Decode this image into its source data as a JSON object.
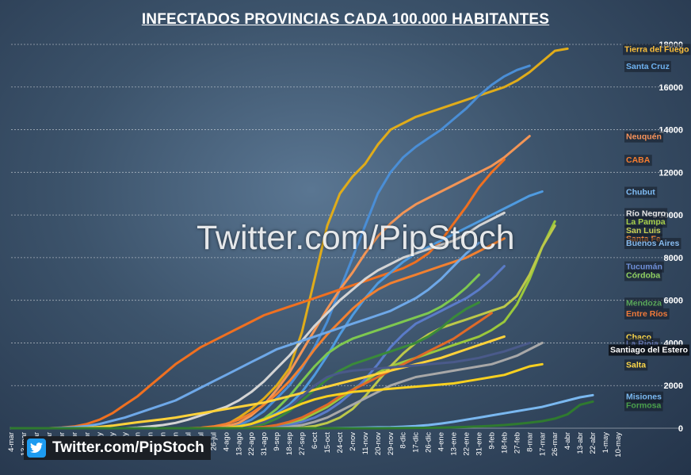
{
  "title": "INFECTADOS  PROVINCIAS CADA 100.000 HABITANTES",
  "watermark": "Twitter.com/PipStoch",
  "footer": {
    "text": "Twitter.com/PipStoch",
    "icon": "twitter-bird-icon"
  },
  "chart_data": {
    "type": "line",
    "xlabel": "",
    "ylabel": "",
    "ylim": [
      0,
      18000
    ],
    "y_ticks": [
      "0",
      "2000",
      "4000",
      "6000",
      "8000",
      "10000",
      "12000",
      "14000",
      "16000",
      "18000"
    ],
    "x_ticks": [
      "4-mar",
      "13-mar",
      "22-mar",
      "31-mar",
      "9-abr",
      "18-abr",
      "27-abr",
      "6-may",
      "15-may",
      "24-may",
      "2-jun",
      "11-jun",
      "20-jun",
      "29-jun",
      "8-jul",
      "17-jul",
      "26-jul",
      "4-ago",
      "13-ago",
      "22-ago",
      "31-ago",
      "9-sep",
      "18-sep",
      "27-sep",
      "6-oct",
      "15-oct",
      "24-oct",
      "2-nov",
      "11-nov",
      "20-nov",
      "29-nov",
      "8-dic",
      "17-dic",
      "26-dic",
      "4-ene",
      "13-ene",
      "22-ene",
      "31-ene",
      "9-feb",
      "18-feb",
      "27-feb",
      "8-mar",
      "17-mar",
      "26-mar",
      "4-abr",
      "13-abr",
      "22-abr",
      "1-may",
      "10-may"
    ],
    "grid": true,
    "series": [
      {
        "name": "Tierra del Fuego",
        "color": "#e0ac1a",
        "values": [
          0,
          0,
          0,
          0,
          0,
          0,
          0,
          0,
          0,
          0,
          0,
          0,
          0,
          0,
          0,
          0,
          30,
          150,
          500,
          900,
          1400,
          2000,
          2800,
          4500,
          7000,
          9500,
          11000,
          11800,
          12400,
          13300,
          14000,
          14300,
          14600,
          14800,
          15000,
          15200,
          15400,
          15600,
          15800,
          16000,
          16300,
          16700,
          17200,
          17700,
          17800,
          null,
          null,
          null,
          null
        ]
      },
      {
        "name": "Santa Cruz",
        "color": "#4a8ed6",
        "values": [
          0,
          0,
          0,
          0,
          0,
          0,
          0,
          0,
          0,
          0,
          0,
          0,
          0,
          0,
          0,
          0,
          0,
          30,
          150,
          400,
          800,
          1400,
          2000,
          2800,
          3800,
          5000,
          6500,
          8000,
          9500,
          11000,
          12000,
          12700,
          13200,
          13600,
          14000,
          14500,
          15000,
          15600,
          16100,
          16500,
          16800,
          17000,
          null,
          null,
          null,
          null,
          null,
          null,
          null
        ]
      },
      {
        "name": "Neuquén",
        "color": "#f39556",
        "values": [
          0,
          0,
          0,
          0,
          0,
          0,
          0,
          0,
          0,
          0,
          0,
          0,
          0,
          0,
          0,
          0,
          20,
          80,
          250,
          600,
          1100,
          1800,
          2600,
          3600,
          4600,
          5600,
          6500,
          7300,
          8200,
          9000,
          9600,
          10100,
          10500,
          10800,
          11100,
          11400,
          11700,
          12000,
          12300,
          12700,
          13200,
          13700,
          null,
          null,
          null,
          null,
          null,
          null,
          null
        ]
      },
      {
        "name": "CABA",
        "color": "#f07020",
        "values": [
          0,
          0,
          0,
          0,
          30,
          80,
          200,
          400,
          700,
          1100,
          1500,
          2000,
          2500,
          3000,
          3400,
          3800,
          4100,
          4400,
          4700,
          5000,
          5300,
          5500,
          5700,
          5900,
          6100,
          6300,
          6500,
          6700,
          6900,
          7100,
          7300,
          7500,
          7800,
          8200,
          8800,
          9600,
          10400,
          11300,
          12000,
          12600,
          null,
          null,
          null,
          null,
          null,
          null,
          null,
          null,
          null
        ]
      },
      {
        "name": "Chubut",
        "color": "#4f9be0",
        "values": [
          0,
          0,
          0,
          0,
          0,
          0,
          0,
          0,
          0,
          0,
          0,
          0,
          0,
          0,
          0,
          0,
          0,
          20,
          80,
          200,
          400,
          700,
          1100,
          1700,
          2500,
          3400,
          4400,
          5300,
          6100,
          6800,
          7300,
          7800,
          8200,
          8500,
          8800,
          9100,
          9400,
          9700,
          10000,
          10300,
          10600,
          10900,
          11100,
          null,
          null,
          null,
          null,
          null,
          null
        ]
      },
      {
        "name": "Río Negro",
        "color": "#d4d4d4",
        "values": [
          0,
          0,
          0,
          0,
          0,
          0,
          0,
          0,
          0,
          0,
          30,
          80,
          150,
          250,
          400,
          600,
          800,
          1000,
          1300,
          1700,
          2200,
          2800,
          3400,
          4100,
          4800,
          5400,
          6000,
          6500,
          7000,
          7400,
          7700,
          8000,
          8200,
          8400,
          8600,
          8800,
          9100,
          9500,
          9800,
          10100,
          null,
          null,
          null,
          null,
          null,
          null,
          null,
          null,
          null
        ]
      },
      {
        "name": "La Pampa",
        "color": "#9ac83c",
        "values": [
          0,
          0,
          0,
          0,
          0,
          0,
          0,
          0,
          0,
          0,
          0,
          0,
          0,
          0,
          0,
          0,
          0,
          0,
          0,
          0,
          20,
          80,
          200,
          400,
          700,
          1000,
          1400,
          1800,
          2200,
          2600,
          2900,
          3100,
          3300,
          3500,
          3700,
          3900,
          4100,
          4300,
          4600,
          5000,
          5800,
          7000,
          8500,
          9700,
          null,
          null,
          null,
          null,
          null
        ]
      },
      {
        "name": "San Luis",
        "color": "#bcc84a",
        "values": [
          0,
          0,
          0,
          0,
          0,
          0,
          0,
          0,
          0,
          0,
          0,
          0,
          0,
          0,
          0,
          0,
          0,
          0,
          0,
          0,
          0,
          0,
          0,
          30,
          100,
          250,
          500,
          900,
          1500,
          2200,
          2900,
          3500,
          4000,
          4400,
          4700,
          4900,
          5100,
          5300,
          5500,
          5700,
          6200,
          7200,
          8500,
          9500,
          null,
          null,
          null,
          null,
          null
        ]
      },
      {
        "name": "Santa Fe",
        "color": "#f28030",
        "values": [
          0,
          0,
          0,
          0,
          0,
          0,
          0,
          0,
          0,
          0,
          0,
          0,
          0,
          0,
          0,
          20,
          80,
          200,
          400,
          700,
          1100,
          1600,
          2200,
          2900,
          3700,
          4400,
          5000,
          5600,
          6100,
          6500,
          6800,
          7000,
          7200,
          7400,
          7600,
          7800,
          8000,
          8300,
          8600,
          8900,
          null,
          null,
          null,
          null,
          null,
          null,
          null,
          null,
          null
        ]
      },
      {
        "name": "Buenos Aires",
        "color": "#6ea8e8",
        "values": [
          0,
          0,
          0,
          0,
          20,
          50,
          100,
          200,
          350,
          500,
          700,
          900,
          1100,
          1300,
          1600,
          1900,
          2200,
          2500,
          2800,
          3100,
          3400,
          3700,
          3900,
          4100,
          4300,
          4500,
          4700,
          4900,
          5100,
          5300,
          5500,
          5800,
          6100,
          6500,
          7000,
          7600,
          8200,
          8700,
          null,
          null,
          null,
          null,
          null,
          null,
          null,
          null,
          null,
          null,
          null
        ]
      },
      {
        "name": "Tucumán",
        "color": "#5a7bc8",
        "values": [
          0,
          0,
          0,
          0,
          0,
          0,
          0,
          0,
          0,
          0,
          0,
          0,
          0,
          0,
          0,
          0,
          0,
          0,
          0,
          0,
          20,
          60,
          150,
          300,
          500,
          800,
          1200,
          1700,
          2300,
          3000,
          3800,
          4400,
          4900,
          5200,
          5500,
          5800,
          6100,
          6500,
          7000,
          7600,
          null,
          null,
          null,
          null,
          null,
          null,
          null,
          null,
          null
        ]
      },
      {
        "name": "Córdoba",
        "color": "#7ec850",
        "values": [
          0,
          0,
          0,
          0,
          0,
          0,
          0,
          0,
          0,
          0,
          0,
          0,
          0,
          0,
          0,
          0,
          0,
          20,
          80,
          200,
          450,
          900,
          1500,
          2200,
          2900,
          3500,
          3900,
          4200,
          4400,
          4600,
          4800,
          5000,
          5200,
          5400,
          5700,
          6100,
          6600,
          7200,
          null,
          null,
          null,
          null,
          null,
          null,
          null,
          null,
          null,
          null,
          null
        ]
      },
      {
        "name": "Mendoza",
        "color": "#3a8a3a",
        "values": [
          0,
          0,
          0,
          0,
          0,
          0,
          0,
          0,
          0,
          0,
          0,
          0,
          0,
          0,
          0,
          0,
          0,
          0,
          20,
          80,
          200,
          450,
          800,
          1300,
          1800,
          2300,
          2700,
          3000,
          3200,
          3400,
          3600,
          3800,
          4000,
          4300,
          4700,
          5200,
          5600,
          5900,
          null,
          null,
          null,
          null,
          null,
          null,
          null,
          null,
          null,
          null,
          null
        ]
      },
      {
        "name": "Entre Ríos",
        "color": "#e06a28",
        "values": [
          0,
          0,
          0,
          0,
          0,
          0,
          0,
          0,
          0,
          0,
          0,
          0,
          0,
          0,
          0,
          0,
          0,
          0,
          0,
          20,
          60,
          150,
          300,
          500,
          800,
          1100,
          1500,
          1800,
          2100,
          2400,
          2700,
          3000,
          3300,
          3600,
          3900,
          4200,
          4600,
          5000,
          5400,
          null,
          null,
          null,
          null,
          null,
          null,
          null,
          null,
          null,
          null
        ]
      },
      {
        "name": "Chaco",
        "color": "#ffd23a",
        "values": [
          0,
          0,
          0,
          0,
          0,
          0,
          20,
          60,
          120,
          200,
          280,
          350,
          420,
          500,
          600,
          700,
          800,
          900,
          1000,
          1100,
          1200,
          1350,
          1500,
          1650,
          1800,
          1950,
          2100,
          2250,
          2400,
          2550,
          2700,
          2850,
          3000,
          3150,
          3300,
          3500,
          3700,
          3900,
          4100,
          4300,
          null,
          null,
          null,
          null,
          null,
          null,
          null,
          null,
          null
        ]
      },
      {
        "name": "La Rioja",
        "color": "#4a5a8a",
        "values": [
          0,
          0,
          0,
          0,
          0,
          0,
          0,
          0,
          0,
          0,
          0,
          0,
          0,
          0,
          0,
          0,
          0,
          20,
          60,
          150,
          300,
          600,
          1000,
          1500,
          2000,
          2400,
          2600,
          2700,
          2750,
          2800,
          2850,
          2900,
          2950,
          3000,
          3050,
          3100,
          3200,
          3300,
          3450,
          3600,
          3800,
          4000,
          null,
          null,
          null,
          null,
          null,
          null,
          null
        ]
      },
      {
        "name": "Santiago del Estero",
        "color": "#a8a8a8",
        "values": [
          0,
          0,
          0,
          0,
          0,
          0,
          0,
          0,
          0,
          0,
          0,
          0,
          0,
          0,
          0,
          0,
          0,
          0,
          0,
          0,
          0,
          20,
          60,
          150,
          300,
          500,
          800,
          1100,
          1400,
          1700,
          2000,
          2200,
          2400,
          2500,
          2600,
          2700,
          2800,
          2900,
          3000,
          3200,
          3400,
          3700,
          4000,
          null,
          null,
          null,
          null,
          null,
          null
        ]
      },
      {
        "name": "Salta",
        "color": "#f8d020",
        "values": [
          0,
          0,
          0,
          0,
          0,
          0,
          0,
          0,
          0,
          0,
          0,
          0,
          0,
          0,
          0,
          0,
          0,
          20,
          80,
          200,
          400,
          650,
          900,
          1150,
          1350,
          1500,
          1600,
          1700,
          1750,
          1800,
          1850,
          1900,
          1950,
          2000,
          2050,
          2100,
          2200,
          2300,
          2400,
          2500,
          2700,
          2900,
          3000,
          null,
          null,
          null,
          null,
          null,
          null
        ]
      },
      {
        "name": "Misiones",
        "color": "#7ab8f0",
        "values": [
          0,
          0,
          0,
          0,
          0,
          0,
          0,
          0,
          0,
          0,
          0,
          0,
          0,
          0,
          0,
          0,
          0,
          0,
          0,
          0,
          0,
          0,
          0,
          0,
          0,
          0,
          10,
          20,
          30,
          40,
          50,
          70,
          100,
          150,
          220,
          300,
          400,
          500,
          600,
          700,
          800,
          900,
          1000,
          1150,
          1300,
          1450,
          1550,
          null,
          null
        ]
      },
      {
        "name": "Formosa",
        "color": "#2f7a2f",
        "values": [
          0,
          0,
          0,
          0,
          0,
          0,
          0,
          0,
          0,
          0,
          0,
          0,
          0,
          0,
          0,
          0,
          0,
          0,
          0,
          0,
          0,
          0,
          0,
          0,
          0,
          0,
          0,
          0,
          0,
          0,
          5,
          10,
          15,
          20,
          30,
          40,
          60,
          80,
          110,
          150,
          200,
          260,
          330,
          450,
          650,
          1100,
          1250,
          null,
          null
        ]
      }
    ],
    "end_labels": [
      {
        "name": "Tierra del Fuego",
        "color": "#ffc03a",
        "y": 17800
      },
      {
        "name": "Santa Cruz",
        "color": "#6fb2f0",
        "y": 17000
      },
      {
        "name": "Neuquén",
        "color": "#f7925a",
        "y": 13700
      },
      {
        "name": "CABA",
        "color": "#f77d30",
        "y": 12600
      },
      {
        "name": "Chubut",
        "color": "#7fbcf5",
        "y": 11100
      },
      {
        "name": "Río Negro",
        "color": "#e6e6e6",
        "y": 10100
      },
      {
        "name": "La Pampa",
        "color": "#a8d04a",
        "y": 9700
      },
      {
        "name": "San Luis",
        "color": "#c8d055",
        "y": 9300
      },
      {
        "name": "Santa Fe",
        "color": "#f58a3a",
        "y": 8900
      },
      {
        "name": "Buenos Aires",
        "color": "#88bcf0",
        "y": 8700
      },
      {
        "name": "Tucumán",
        "color": "#6f8fd8",
        "y": 7600
      },
      {
        "name": "Córdoba",
        "color": "#8fd060",
        "y": 7200
      },
      {
        "name": "Mendoza",
        "color": "#5aa85a",
        "y": 5900
      },
      {
        "name": "Entre Ríos",
        "color": "#f07a3a",
        "y": 5400
      },
      {
        "name": "Chaco",
        "color": "#ffd94a",
        "y": 4300
      },
      {
        "name": "La Rioja",
        "color": "#6070a8",
        "y": 4000
      },
      {
        "name": "Santiago del Estero",
        "color": "#ffffff",
        "y": 3700
      },
      {
        "name": "Salta",
        "color": "#ffd94a",
        "y": 3000
      },
      {
        "name": "Misiones",
        "color": "#7ab8f0",
        "y": 1500
      },
      {
        "name": "Formosa",
        "color": "#4aa04a",
        "y": 1100
      }
    ]
  }
}
